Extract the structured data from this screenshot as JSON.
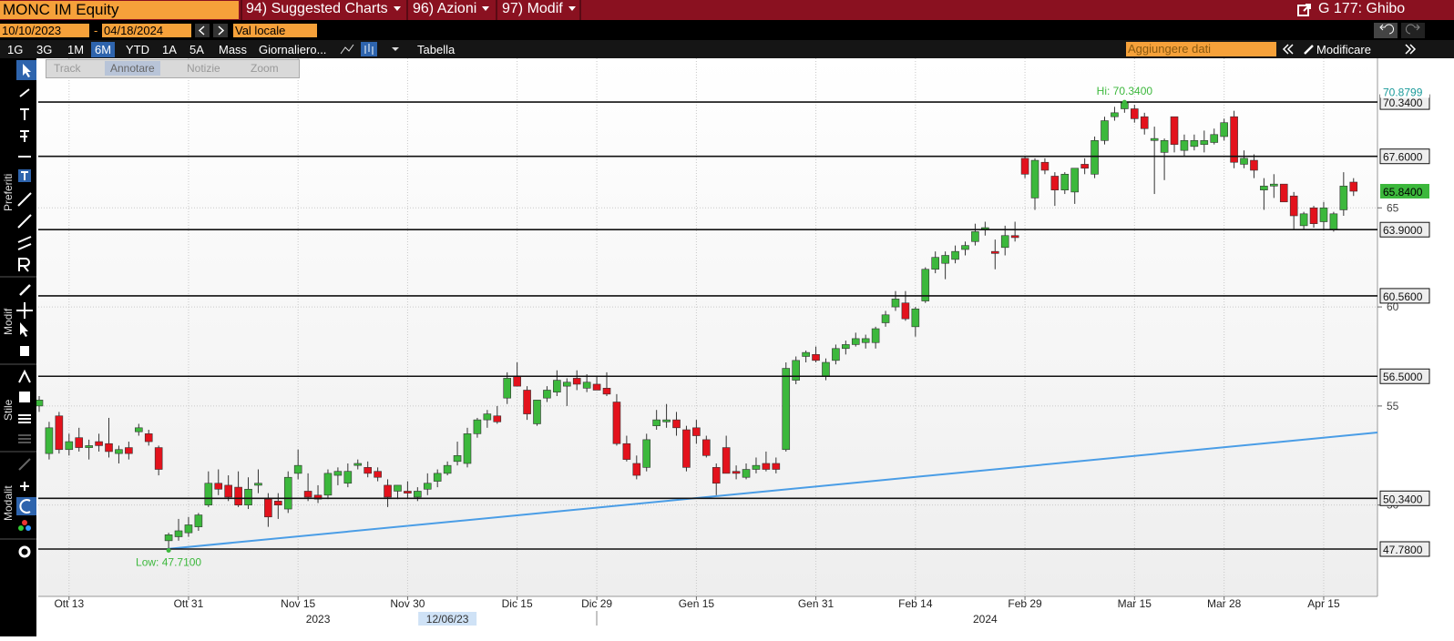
{
  "toolbar": {
    "security": "MONC IM Equity",
    "menus": [
      "94) Suggested Charts",
      "96) Azioni",
      "97) Modif"
    ],
    "page": "G 177: Ghibo"
  },
  "range_bar": {
    "start": "10/10/2023",
    "separator": "-",
    "end": "04/18/2024",
    "currency": "Val locale"
  },
  "period_bar": {
    "periods": [
      "1G",
      "3G",
      "1M",
      "6M",
      "YTD",
      "1A",
      "5A",
      "Mass"
    ],
    "selected_index": 3,
    "frequency": "Giornaliero...",
    "table": "Tabella",
    "add_data": "Aggiungere dati",
    "edit": "Modificare"
  },
  "chart_tools": [
    "Track",
    "Annotare",
    "Notizie",
    "Zoom"
  ],
  "side_labels": [
    "Preferiti",
    "Modif",
    "Stile",
    "Modalit"
  ],
  "chart_data": {
    "type": "candlestick",
    "up_color": "#3cb83c",
    "down_color": "#e3121c",
    "open": [
      55.0,
      52.6,
      54.5,
      52.8,
      53.4,
      52.9,
      53.2,
      53.1,
      52.6,
      52.9,
      53.7,
      53.6,
      52.9,
      48.2,
      48.4,
      48.6,
      48.9,
      50.0,
      51.1,
      51.0,
      50.9,
      50.0,
      51.0,
      50.3,
      50.2,
      49.8,
      51.6,
      50.7,
      50.5,
      50.5,
      51.5,
      51.1,
      52.0,
      51.9,
      51.7,
      51.0,
      50.7,
      50.7,
      50.4,
      50.8,
      51.2,
      51.6,
      52.2,
      52.1,
      53.6,
      54.3,
      54.5,
      55.4,
      56.5,
      55.8,
      54.1,
      55.4,
      55.7,
      56.0,
      56.4,
      55.9,
      56.1,
      55.9,
      55.2,
      53.1,
      52.1,
      51.9,
      54.0,
      54.2,
      54.3,
      53.8,
      53.9,
      53.3,
      51.9,
      52.9,
      51.7,
      51.4,
      51.8,
      52.1,
      52.1,
      52.8,
      56.3,
      57.5,
      57.6,
      56.5,
      57.3,
      57.9,
      58.1,
      58.2,
      58.2,
      59.2,
      60.0,
      60.2,
      59.0,
      60.3,
      61.9,
      62.2,
      62.4,
      62.9,
      63.3,
      63.9,
      62.8,
      63.0,
      63.6,
      67.5,
      65.5,
      67.3,
      66.6,
      65.9,
      65.8,
      67.2,
      66.7,
      68.4,
      69.6,
      70.0,
      70.0,
      69.6,
      68.4,
      67.8,
      69.6,
      67.9,
      68.1,
      68.2,
      68.3,
      68.6,
      69.6,
      67.2,
      67.4,
      65.9,
      66.1,
      66.2,
      65.6,
      64.1,
      65.0,
      64.3,
      63.9,
      64.9,
      66.3
    ],
    "high": [
      55.5,
      54.2,
      54.7,
      53.6,
      53.9,
      53.3,
      53.6,
      54.4,
      53.0,
      53.2,
      54.1,
      53.8,
      53.0,
      48.6,
      49.3,
      49.4,
      49.6,
      51.7,
      51.8,
      51.5,
      51.7,
      51.4,
      51.8,
      50.6,
      50.6,
      51.7,
      52.8,
      51.6,
      51.0,
      51.8,
      51.9,
      52.1,
      52.3,
      52.2,
      51.9,
      51.3,
      51.0,
      51.2,
      50.9,
      51.6,
      51.8,
      52.2,
      53.2,
      53.9,
      54.4,
      54.8,
      55.0,
      56.7,
      57.2,
      56.0,
      55.3,
      56.0,
      56.8,
      56.4,
      56.8,
      56.6,
      56.5,
      56.7,
      55.6,
      53.5,
      52.5,
      53.6,
      54.8,
      55.1,
      54.7,
      54.0,
      54.3,
      53.5,
      52.1,
      53.5,
      52.0,
      52.1,
      52.4,
      52.7,
      52.4,
      57.2,
      57.5,
      57.8,
      58.0,
      57.4,
      58.1,
      58.3,
      58.7,
      58.6,
      59.0,
      59.8,
      60.8,
      60.8,
      60.0,
      62.0,
      62.8,
      62.8,
      63.1,
      63.3,
      64.2,
      64.3,
      63.4,
      64.1,
      64.3,
      67.6,
      67.5,
      67.5,
      66.8,
      66.8,
      67.0,
      67.5,
      68.6,
      69.6,
      70.1,
      70.34,
      70.2,
      69.8,
      69.1,
      68.5,
      69.6,
      68.7,
      68.7,
      68.9,
      69.0,
      69.5,
      69.9,
      67.9,
      67.7,
      66.5,
      66.7,
      66.2,
      65.8,
      64.8,
      65.1,
      65.3,
      64.8,
      66.8,
      66.5
    ],
    "low": [
      54.7,
      52.3,
      52.6,
      52.5,
      52.7,
      52.3,
      52.7,
      52.4,
      52.1,
      52.3,
      53.5,
      53.0,
      51.5,
      47.71,
      48.2,
      48.4,
      48.7,
      49.9,
      50.5,
      50.2,
      49.9,
      49.8,
      50.6,
      48.9,
      49.3,
      49.6,
      51.3,
      50.2,
      50.1,
      50.3,
      51.0,
      50.9,
      51.8,
      51.4,
      51.2,
      49.9,
      50.3,
      50.3,
      50.2,
      50.5,
      50.9,
      51.5,
      52.0,
      51.9,
      53.4,
      53.9,
      54.1,
      55.1,
      56.0,
      54.3,
      54.0,
      55.2,
      55.5,
      55.0,
      55.8,
      55.7,
      55.8,
      55.5,
      53.0,
      52.2,
      51.3,
      51.7,
      53.8,
      53.9,
      53.5,
      51.7,
      53.1,
      52.4,
      50.5,
      51.6,
      51.3,
      51.3,
      51.6,
      51.7,
      51.6,
      52.7,
      56.1,
      57.2,
      57.2,
      56.3,
      57.1,
      57.6,
      58.0,
      57.9,
      57.9,
      59.0,
      59.8,
      59.3,
      58.5,
      60.2,
      61.7,
      61.4,
      62.2,
      62.6,
      63.1,
      63.6,
      61.9,
      62.6,
      63.3,
      66.5,
      64.9,
      66.7,
      65.1,
      65.7,
      65.2,
      66.7,
      66.5,
      68.2,
      69.4,
      69.8,
      69.3,
      68.7,
      65.7,
      66.4,
      67.8,
      67.6,
      67.9,
      67.8,
      68.2,
      68.4,
      67.0,
      67.0,
      66.5,
      64.9,
      65.5,
      65.3,
      63.9,
      63.9,
      64.0,
      63.9,
      63.8,
      64.6,
      65.6
    ],
    "close": [
      55.3,
      53.9,
      52.8,
      53.2,
      52.9,
      53.0,
      53.0,
      52.7,
      52.8,
      52.6,
      53.9,
      53.2,
      51.8,
      48.5,
      48.7,
      49.0,
      49.5,
      51.1,
      50.8,
      50.4,
      50.0,
      50.8,
      51.1,
      49.4,
      50.0,
      51.4,
      52.0,
      50.4,
      50.3,
      51.6,
      51.7,
      51.7,
      52.1,
      51.6,
      51.4,
      50.4,
      51.0,
      50.6,
      50.7,
      51.1,
      51.6,
      52.0,
      52.5,
      53.6,
      54.3,
      54.6,
      54.2,
      56.4,
      56.0,
      54.6,
      55.3,
      55.8,
      56.3,
      56.2,
      56.1,
      56.2,
      55.8,
      55.6,
      53.1,
      52.3,
      51.5,
      53.3,
      54.3,
      54.3,
      53.9,
      51.9,
      53.5,
      52.5,
      51.1,
      51.6,
      51.6,
      51.8,
      52.0,
      51.8,
      51.8,
      56.9,
      57.3,
      57.7,
      57.3,
      57.2,
      57.9,
      58.1,
      58.4,
      58.4,
      58.9,
      59.6,
      60.4,
      59.4,
      59.9,
      61.9,
      62.5,
      62.6,
      62.8,
      63.1,
      63.8,
      64.0,
      62.7,
      63.6,
      63.5,
      66.7,
      67.4,
      66.9,
      65.9,
      66.7,
      67.0,
      67.0,
      68.4,
      69.4,
      69.8,
      70.3,
      69.5,
      69.0,
      68.5,
      68.4,
      68.2,
      68.4,
      68.4,
      68.4,
      68.7,
      69.3,
      67.3,
      67.5,
      66.9,
      66.1,
      66.2,
      65.3,
      64.6,
      64.7,
      64.2,
      65.0,
      64.7,
      66.1,
      65.84
    ],
    "ylim": [
      45.39,
      72.55
    ],
    "yticks": [
      50,
      55,
      60,
      65
    ],
    "grid": true,
    "xticks": [
      {
        "value": 3,
        "label": "Ott 13"
      },
      {
        "value": 15,
        "label": "Ott 31"
      },
      {
        "value": 26,
        "label": "Nov 15"
      },
      {
        "value": 37,
        "label": "Nov 30"
      },
      {
        "value": 48,
        "label": "Dic 15"
      },
      {
        "value": 56,
        "label": "Dic 29"
      },
      {
        "value": 66,
        "label": "Gen 15"
      },
      {
        "value": 78,
        "label": "Gen 31"
      },
      {
        "value": 88,
        "label": "Feb 14"
      },
      {
        "value": 99,
        "label": "Feb 29"
      },
      {
        "value": 110,
        "label": "Mar 15"
      },
      {
        "value": 119,
        "label": "Mar 28"
      },
      {
        "value": 129,
        "label": "Apr 15"
      }
    ],
    "x_group_labels": [
      {
        "value": 28,
        "label": "2023"
      },
      {
        "value": 95,
        "label": "2024"
      }
    ],
    "x_highlight": {
      "value": 41,
      "label": "12/06/23"
    },
    "levels": [
      {
        "value": 70.34,
        "label": "70.3400"
      },
      {
        "value": 67.6,
        "label": "67.6000"
      },
      {
        "value": 63.9,
        "label": "63.9000"
      },
      {
        "value": 60.56,
        "label": "60.5600"
      },
      {
        "value": 56.5,
        "label": "56.5000"
      },
      {
        "value": 50.34,
        "label": "50.3400"
      },
      {
        "value": 47.78,
        "label": "47.7800"
      }
    ],
    "last_price": {
      "value": 65.84,
      "label": "65.8400"
    },
    "top_label": {
      "value": 70.8799,
      "label": "70.8799"
    },
    "annotations": [
      {
        "x": 109,
        "value": 70.34,
        "label": "Hi: 70.3400"
      },
      {
        "x": 13,
        "value": 47.71,
        "label": "Low: 47.7100"
      }
    ]
  }
}
